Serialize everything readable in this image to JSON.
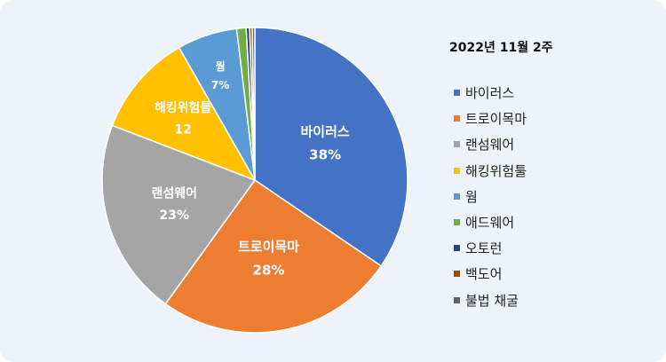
{
  "chart_data": {
    "type": "pie",
    "title": "2022년  11월 2주",
    "legend_position": "right",
    "slices": [
      {
        "name": "바이러스",
        "value": 38,
        "data_label": "38%",
        "color": "#4472c4"
      },
      {
        "name": "트로이목마",
        "value": 28,
        "data_label": "28%",
        "color": "#ed7d31"
      },
      {
        "name": "랜섬웨어",
        "value": 23,
        "data_label": "23%",
        "color": "#a5a5a5"
      },
      {
        "name": "해킹위험툴",
        "value": 12,
        "data_label": "12",
        "color": "#ffc000"
      },
      {
        "name": "웜",
        "value": 7,
        "data_label": "7%",
        "color": "#5b9bd5"
      },
      {
        "name": "애드웨어",
        "value": 1.1,
        "data_label": "",
        "color": "#70ad47"
      },
      {
        "name": "오토런",
        "value": 0.4,
        "data_label": "",
        "color": "#264478"
      },
      {
        "name": "백도어",
        "value": 0.3,
        "data_label": "",
        "color": "#9e480e"
      },
      {
        "name": "불법 채굴",
        "value": 0.3,
        "data_label": "",
        "color": "#636363"
      }
    ]
  }
}
